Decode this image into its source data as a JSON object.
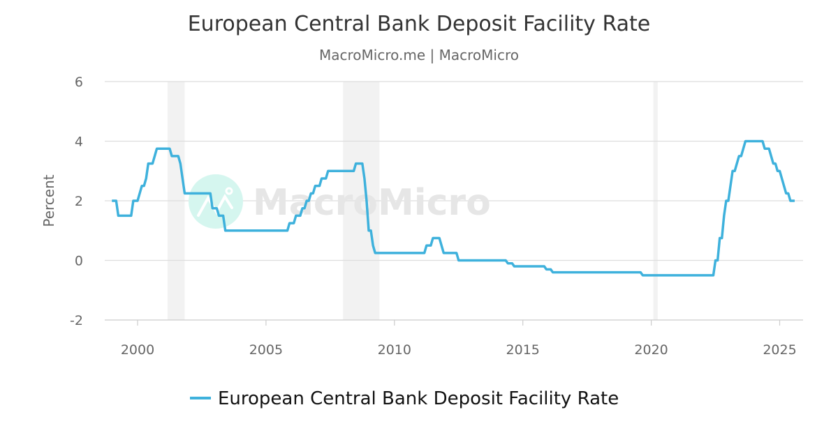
{
  "chart_data": {
    "type": "line",
    "title": "European Central Bank Deposit Facility Rate",
    "subtitle": "MacroMicro.me | MacroMicro",
    "ylabel": "Percent",
    "xlabel": "",
    "ylim": [
      -2,
      6
    ],
    "xlim": [
      "1999-01",
      "2025-08"
    ],
    "y_ticks": [
      "-2",
      "0",
      "2",
      "4",
      "6"
    ],
    "x_ticks": [
      "2000",
      "2005",
      "2010",
      "2015",
      "2020",
      "2025"
    ],
    "grid": true,
    "legend_position": "bottom",
    "watermark": "MacroMicro",
    "colors": {
      "line": "#3eb1dc",
      "recession": "#f2f2f2",
      "grid": "#dddddd",
      "logo": "#d5f6ef"
    },
    "recession_shading": [
      [
        "2001-03",
        "2001-11"
      ],
      [
        "2008-01",
        "2009-06"
      ],
      [
        "2020-02",
        "2020-04"
      ]
    ],
    "series": [
      {
        "name": "European Central Bank Deposit Facility Rate",
        "step_changes": [
          [
            "1999-01",
            2.0
          ],
          [
            "1999-04",
            1.5
          ],
          [
            "1999-11",
            2.0
          ],
          [
            "2000-02",
            2.25
          ],
          [
            "2000-03",
            2.5
          ],
          [
            "2000-05",
            2.75
          ],
          [
            "2000-06",
            3.25
          ],
          [
            "2000-09",
            3.5
          ],
          [
            "2000-10",
            3.75
          ],
          [
            "2001-05",
            3.5
          ],
          [
            "2001-09",
            3.25
          ],
          [
            "2001-10",
            2.75
          ],
          [
            "2001-11",
            2.25
          ],
          [
            "2002-12",
            1.75
          ],
          [
            "2003-03",
            1.5
          ],
          [
            "2003-06",
            1.0
          ],
          [
            "2005-12",
            1.25
          ],
          [
            "2006-03",
            1.5
          ],
          [
            "2006-06",
            1.75
          ],
          [
            "2006-08",
            2.0
          ],
          [
            "2006-10",
            2.25
          ],
          [
            "2006-12",
            2.5
          ],
          [
            "2007-03",
            2.75
          ],
          [
            "2007-06",
            3.0
          ],
          [
            "2008-07",
            3.25
          ],
          [
            "2008-10",
            3.25
          ],
          [
            "2008-11",
            2.75
          ],
          [
            "2008-12",
            2.0
          ],
          [
            "2009-01",
            1.0
          ],
          [
            "2009-03",
            0.5
          ],
          [
            "2009-04",
            0.25
          ],
          [
            "2011-04",
            0.5
          ],
          [
            "2011-07",
            0.75
          ],
          [
            "2011-11",
            0.5
          ],
          [
            "2011-12",
            0.25
          ],
          [
            "2012-07",
            0.0
          ],
          [
            "2014-06",
            -0.1
          ],
          [
            "2014-09",
            -0.2
          ],
          [
            "2015-12",
            -0.3
          ],
          [
            "2016-03",
            -0.4
          ],
          [
            "2019-09",
            -0.5
          ],
          [
            "2022-07",
            0.0
          ],
          [
            "2022-09",
            0.75
          ],
          [
            "2022-11",
            1.5
          ],
          [
            "2022-12",
            2.0
          ],
          [
            "2023-02",
            2.5
          ],
          [
            "2023-03",
            3.0
          ],
          [
            "2023-05",
            3.25
          ],
          [
            "2023-06",
            3.5
          ],
          [
            "2023-08",
            3.75
          ],
          [
            "2023-09",
            4.0
          ],
          [
            "2024-06",
            3.75
          ],
          [
            "2024-09",
            3.5
          ],
          [
            "2024-10",
            3.25
          ],
          [
            "2024-12",
            3.0
          ],
          [
            "2025-02",
            2.75
          ],
          [
            "2025-03",
            2.5
          ],
          [
            "2025-04",
            2.25
          ],
          [
            "2025-06",
            2.0
          ],
          [
            "2025-08",
            2.0
          ]
        ]
      }
    ]
  }
}
